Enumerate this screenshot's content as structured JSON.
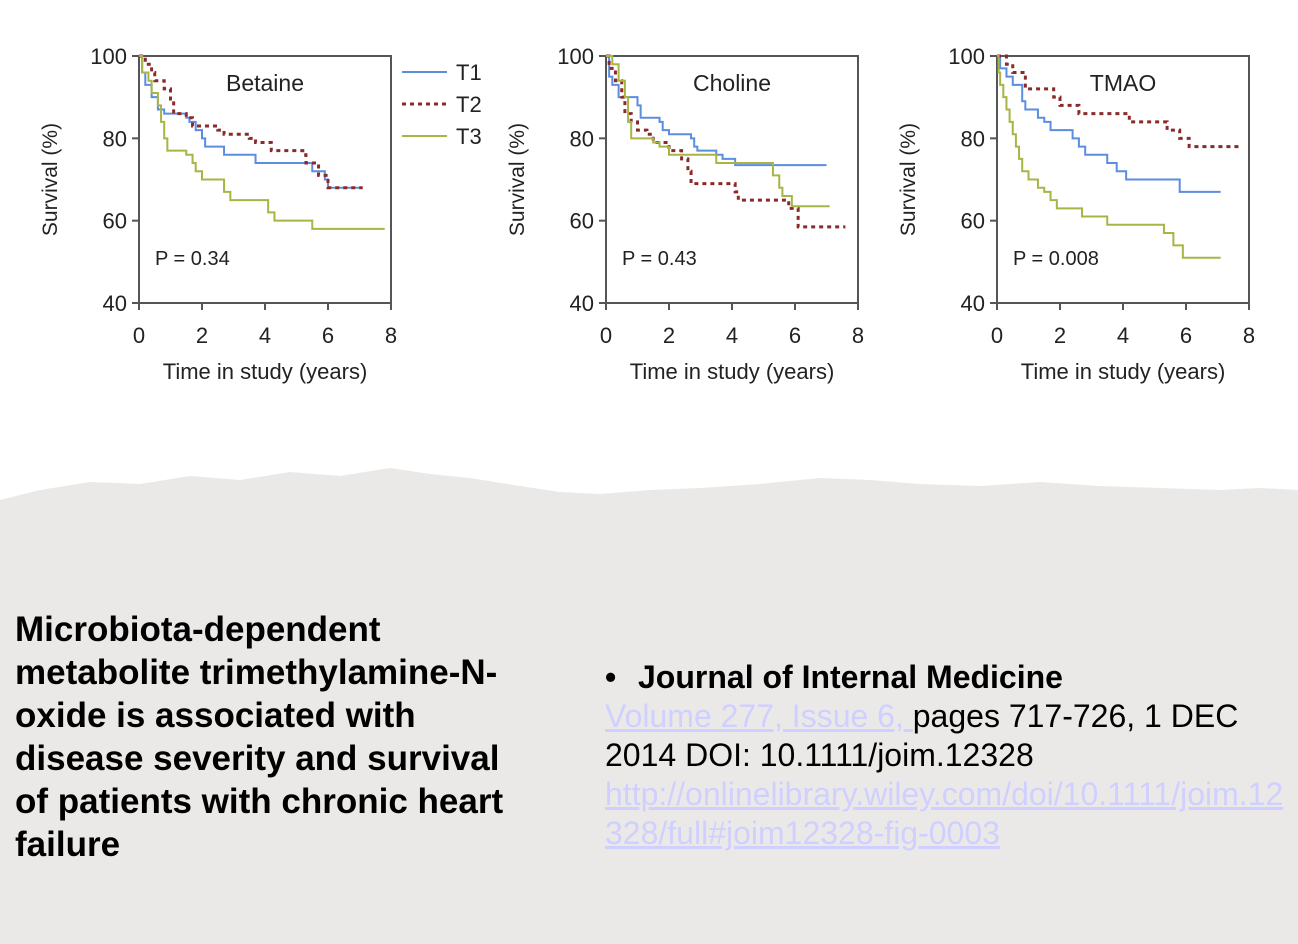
{
  "chart_data": [
    {
      "type": "line",
      "title": "Betaine",
      "annotation": "P = 0.34",
      "xlabel": "Time in study (years)",
      "ylabel": "Survival (%)",
      "xlim": [
        0,
        8
      ],
      "ylim": [
        40,
        100
      ],
      "xticks": [
        "0",
        "2",
        "4",
        "6",
        "8"
      ],
      "yticks": [
        "40",
        "60",
        "80",
        "100"
      ],
      "legend": "right",
      "series": [
        {
          "name": "T1",
          "color": "#5b8de0",
          "style": "solid",
          "end": 7.1,
          "steps": [
            [
              0,
              100
            ],
            [
              0.1,
              96
            ],
            [
              0.2,
              93
            ],
            [
              0.4,
              90
            ],
            [
              0.6,
              87
            ],
            [
              0.8,
              86
            ],
            [
              1.5,
              85
            ],
            [
              1.6,
              84
            ],
            [
              1.8,
              82
            ],
            [
              2,
              80
            ],
            [
              2.1,
              78
            ],
            [
              2.7,
              76
            ],
            [
              3.7,
              74
            ],
            [
              5.5,
              72
            ],
            [
              5.9,
              70
            ],
            [
              6,
              68
            ]
          ]
        },
        {
          "name": "T2",
          "color": "#8b2a2a",
          "style": "dashed",
          "end": 7.1,
          "steps": [
            [
              0,
              100
            ],
            [
              0.2,
              98
            ],
            [
              0.4,
              96
            ],
            [
              0.5,
              94
            ],
            [
              0.8,
              92
            ],
            [
              1,
              89
            ],
            [
              1.1,
              86
            ],
            [
              1.5,
              85
            ],
            [
              1.7,
              83
            ],
            [
              2.5,
              82
            ],
            [
              2.7,
              81
            ],
            [
              3.5,
              80
            ],
            [
              3.7,
              79
            ],
            [
              4.2,
              77
            ],
            [
              5.2,
              76
            ],
            [
              5.3,
              74
            ],
            [
              5.7,
              71
            ],
            [
              6,
              68
            ]
          ]
        },
        {
          "name": "T3",
          "color": "#a8b545",
          "style": "solid",
          "end": 7.8,
          "steps": [
            [
              0,
              100
            ],
            [
              0.1,
              96
            ],
            [
              0.3,
              94
            ],
            [
              0.4,
              91
            ],
            [
              0.6,
              88
            ],
            [
              0.7,
              84
            ],
            [
              0.8,
              80
            ],
            [
              0.9,
              77
            ],
            [
              1.5,
              76
            ],
            [
              1.7,
              74
            ],
            [
              1.8,
              72
            ],
            [
              2,
              70
            ],
            [
              2.7,
              67
            ],
            [
              2.9,
              65
            ],
            [
              4.1,
              62
            ],
            [
              4.3,
              60
            ],
            [
              5.5,
              58
            ]
          ]
        }
      ]
    },
    {
      "type": "line",
      "title": "Choline",
      "annotation": "P = 0.43",
      "xlabel": "Time in study (years)",
      "ylabel": "Survival (%)",
      "xlim": [
        0,
        8
      ],
      "ylim": [
        40,
        100
      ],
      "xticks": [
        "0",
        "2",
        "4",
        "6",
        "8"
      ],
      "yticks": [
        "40",
        "60",
        "80",
        "100"
      ],
      "series": [
        {
          "name": "T1",
          "color": "#5b8de0",
          "style": "solid",
          "end": 7.0,
          "steps": [
            [
              0,
              100
            ],
            [
              0.1,
              95
            ],
            [
              0.2,
              93
            ],
            [
              0.4,
              90
            ],
            [
              1,
              88
            ],
            [
              1.1,
              85
            ],
            [
              1.7,
              84
            ],
            [
              1.8,
              82
            ],
            [
              2,
              81
            ],
            [
              2.7,
              80
            ],
            [
              2.8,
              78
            ],
            [
              2.9,
              77
            ],
            [
              3.5,
              76
            ],
            [
              3.7,
              75
            ],
            [
              4.1,
              73.5
            ]
          ]
        },
        {
          "name": "T2",
          "color": "#8b2a2a",
          "style": "dashed",
          "end": 7.6,
          "steps": [
            [
              0,
              100
            ],
            [
              0.1,
              97
            ],
            [
              0.3,
              94
            ],
            [
              0.5,
              90
            ],
            [
              0.6,
              86
            ],
            [
              0.8,
              84
            ],
            [
              1,
              82
            ],
            [
              1.3,
              81
            ],
            [
              1.5,
              79
            ],
            [
              2,
              77
            ],
            [
              2.4,
              75
            ],
            [
              2.6,
              72
            ],
            [
              2.7,
              69
            ],
            [
              4.1,
              67
            ],
            [
              4.2,
              65
            ],
            [
              5.8,
              63
            ],
            [
              6.1,
              58.5
            ]
          ]
        },
        {
          "name": "T3",
          "color": "#a8b545",
          "style": "solid",
          "end": 7.1,
          "steps": [
            [
              0,
              100
            ],
            [
              0.2,
              98
            ],
            [
              0.4,
              94
            ],
            [
              0.6,
              90
            ],
            [
              0.7,
              84
            ],
            [
              0.8,
              80
            ],
            [
              1.5,
              79
            ],
            [
              1.7,
              78
            ],
            [
              2,
              76
            ],
            [
              3.5,
              74
            ],
            [
              5.3,
              71
            ],
            [
              5.5,
              68
            ],
            [
              5.6,
              66
            ],
            [
              5.9,
              63.5
            ]
          ]
        }
      ]
    },
    {
      "type": "line",
      "title": "TMAO",
      "annotation": "P = 0.008",
      "xlabel": "Time in study (years)",
      "ylabel": "Survival (%)",
      "xlim": [
        0,
        8
      ],
      "ylim": [
        40,
        100
      ],
      "xticks": [
        "0",
        "2",
        "4",
        "6",
        "8"
      ],
      "yticks": [
        "40",
        "60",
        "80",
        "100"
      ],
      "series": [
        {
          "name": "T1",
          "color": "#5b8de0",
          "style": "solid",
          "end": 7.1,
          "steps": [
            [
              0,
              100
            ],
            [
              0.1,
              97
            ],
            [
              0.3,
              95
            ],
            [
              0.5,
              93
            ],
            [
              0.8,
              89
            ],
            [
              0.9,
              87
            ],
            [
              1.3,
              85
            ],
            [
              1.5,
              84
            ],
            [
              1.7,
              82
            ],
            [
              2.4,
              80
            ],
            [
              2.6,
              78
            ],
            [
              2.8,
              76
            ],
            [
              3.5,
              74
            ],
            [
              3.8,
              72
            ],
            [
              4.1,
              70
            ],
            [
              5.8,
              67
            ]
          ]
        },
        {
          "name": "T2",
          "color": "#8b2a2a",
          "style": "dashed",
          "end": 7.7,
          "steps": [
            [
              0,
              100
            ],
            [
              0.3,
              98
            ],
            [
              0.5,
              96
            ],
            [
              0.9,
              92
            ],
            [
              1.8,
              90
            ],
            [
              2,
              88
            ],
            [
              2.6,
              86
            ],
            [
              4.2,
              84
            ],
            [
              5.4,
              82
            ],
            [
              5.8,
              80
            ],
            [
              6.1,
              78
            ]
          ]
        },
        {
          "name": "T3",
          "color": "#a8b545",
          "style": "solid",
          "end": 7.1,
          "steps": [
            [
              0,
              100
            ],
            [
              0.05,
              96
            ],
            [
              0.1,
              93
            ],
            [
              0.2,
              90
            ],
            [
              0.3,
              87
            ],
            [
              0.4,
              84
            ],
            [
              0.5,
              81
            ],
            [
              0.6,
              78
            ],
            [
              0.7,
              75
            ],
            [
              0.8,
              72
            ],
            [
              1,
              70
            ],
            [
              1.3,
              68
            ],
            [
              1.5,
              67
            ],
            [
              1.7,
              65
            ],
            [
              1.9,
              63
            ],
            [
              2.7,
              61
            ],
            [
              3.5,
              59
            ],
            [
              5.3,
              57
            ],
            [
              5.6,
              54
            ],
            [
              5.9,
              51
            ]
          ]
        }
      ]
    }
  ],
  "slide": {
    "title": "Microbiota-dependent metabolite trimethylamine-N-oxide is associated with disease severity and survival of patients with chronic heart failure",
    "bullet": "•",
    "journal": "Journal of Internal Medicine",
    "volume_link": "Volume 277, Issue 6, ",
    "pages_text": "pages 717-726, 1 DEC 2014 DOI: 10.1111/joim.12328",
    "url": "http://onlinelibrary.wiley.com/doi/10.1111/joim.12328/full#joim12328-fig-0003",
    "link_color": "#cfd0ff",
    "paper_color": "#ebe9e7"
  }
}
